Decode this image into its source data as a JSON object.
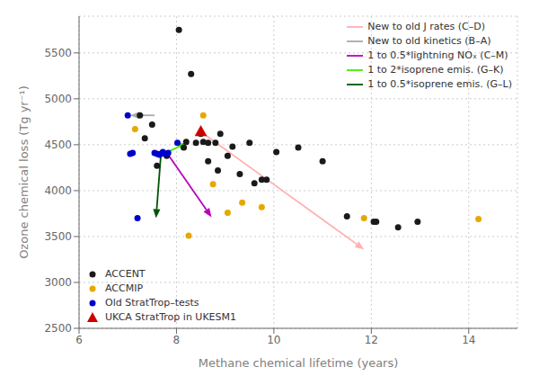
{
  "chart_data": {
    "type": "scatter",
    "xlabel": "Methane chemical lifetime (years)",
    "ylabel": "Ozone chemical loss (Tg yr⁻¹)",
    "xlim": [
      6,
      15
    ],
    "ylim": [
      2500,
      5900
    ],
    "xticks": [
      6,
      8,
      10,
      12,
      14
    ],
    "yticks": [
      2500,
      3000,
      3500,
      4000,
      4500,
      5000,
      5500
    ],
    "grid": true,
    "series": [
      {
        "name": "ACCENT",
        "type": "scatter",
        "marker": "circle",
        "color": "#1a1a1a",
        "legend": "lower left",
        "x": [
          7.5,
          7.8,
          8.05,
          8.3,
          8.5,
          8.65,
          8.9,
          9.15,
          9.5,
          9.75,
          10.05,
          11.0,
          11.5,
          12.55,
          12.95,
          7.25,
          7.6,
          8.15,
          8.4,
          8.65,
          9.05,
          9.3,
          9.6,
          10.5,
          12.05,
          12.1,
          8.8,
          8.2,
          7.35,
          8.85,
          9.85,
          8.55
        ],
        "values": [
          4720,
          4380,
          5750,
          5270,
          4620,
          4520,
          4620,
          4480,
          4520,
          4120,
          4420,
          4320,
          3720,
          3600,
          3660,
          4820,
          4270,
          4470,
          4520,
          4320,
          4380,
          4180,
          4080,
          4470,
          3660,
          3660,
          4520,
          4530,
          4570,
          4220,
          4120,
          4530
        ]
      },
      {
        "name": "ACCMIP",
        "type": "scatter",
        "marker": "circle",
        "color": "#e6a800",
        "legend": "lower left",
        "x": [
          7.15,
          8.55,
          8.75,
          9.05,
          9.35,
          11.85,
          14.2,
          8.25,
          9.75
        ],
        "values": [
          4670,
          4820,
          4070,
          3760,
          3870,
          3700,
          3690,
          3510,
          3820
        ]
      },
      {
        "name": "Old StratTrop–tests",
        "type": "scatter",
        "marker": "circle",
        "color": "#0000cc",
        "legend": "lower left",
        "x": [
          7.0,
          7.05,
          7.1,
          7.2,
          7.55,
          7.6,
          7.65,
          7.68,
          7.72,
          7.78,
          7.83,
          8.02
        ],
        "values": [
          4820,
          4400,
          4410,
          3700,
          4410,
          4400,
          4390,
          4400,
          4420,
          4400,
          4410,
          4520
        ]
      },
      {
        "name": "UKCA StratTrop in UKESM1",
        "type": "scatter",
        "marker": "triangle",
        "color": "#cc0000",
        "legend": "lower left",
        "x": [
          8.5
        ],
        "values": [
          4640
        ]
      },
      {
        "name": "New to old J rates (C–D)",
        "type": "arrow",
        "color": "#ffb0b0",
        "legend": "upper right",
        "x": [
          8.5,
          11.85
        ],
        "values": [
          4640,
          3360
        ]
      },
      {
        "name": "New to old kinetics (B–A)",
        "type": "arrow",
        "color": "#aaaaaa",
        "legend": "upper right",
        "x": [
          7.55,
          7.05
        ],
        "values": [
          4820,
          4820
        ]
      },
      {
        "name": "1 to 0.5*lightning NOₓ (C–M)",
        "type": "arrow",
        "color": "#bb00bb",
        "legend": "upper right",
        "x": [
          7.83,
          8.72
        ],
        "values": [
          4390,
          3710
        ]
      },
      {
        "name": "1 to 2*isoprene emis. (G–K)",
        "type": "arrow",
        "color": "#44ee00",
        "legend": "upper right",
        "x": [
          7.68,
          8.23
        ],
        "values": [
          4390,
          4520
        ]
      },
      {
        "name": "1 to 0.5*isoprene emis. (G–L)",
        "type": "arrow",
        "color": "#005500",
        "legend": "upper right",
        "x": [
          7.68,
          7.58
        ],
        "values": [
          4390,
          3700
        ]
      }
    ]
  }
}
